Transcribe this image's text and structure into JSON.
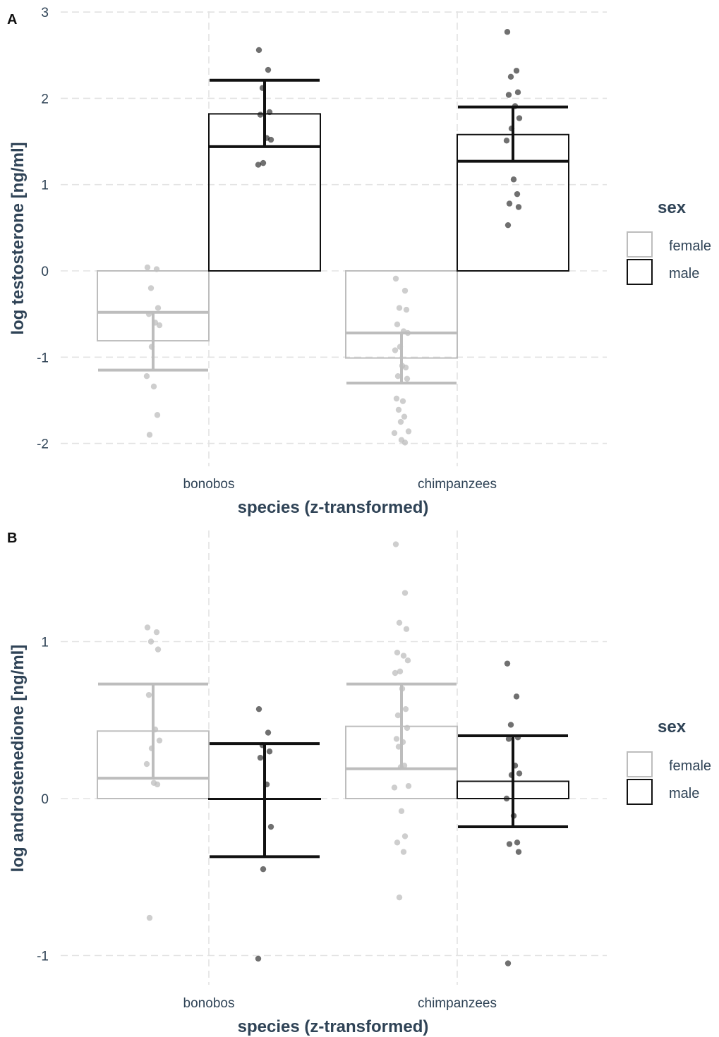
{
  "chart_data": [
    {
      "type": "bar",
      "panel": "A",
      "xlabel": "species (z-transformed)",
      "ylabel": "log testosterone [ng/ml]",
      "categories": [
        "bonobos",
        "chimpanzees"
      ],
      "yticks": [
        -2,
        -1,
        0,
        1,
        2,
        3
      ],
      "ylim": [
        -2.1,
        3.0
      ],
      "grid": true,
      "legend": {
        "title": "sex",
        "position": "right",
        "entries": [
          "female",
          "male"
        ]
      },
      "series": [
        {
          "name": "female",
          "color": "#bdbdbd",
          "values": [
            -0.81,
            -1.01
          ],
          "error": [
            [
              -1.15,
              -0.48
            ],
            [
              -1.3,
              -0.72
            ]
          ],
          "points": [
            [
              0.04,
              0.02,
              -0.2,
              -0.43,
              -0.5,
              -0.6,
              -0.63,
              -0.88,
              -1.22,
              -1.34,
              -1.67,
              -1.9
            ],
            [
              -0.09,
              -0.23,
              -0.43,
              -0.45,
              -0.62,
              -0.7,
              -0.72,
              -0.88,
              -0.92,
              -1.1,
              -1.12,
              -1.22,
              -1.25,
              -1.48,
              -1.51,
              -1.61,
              -1.69,
              -1.75,
              -1.86,
              -1.88,
              -1.96,
              -1.99
            ]
          ]
        },
        {
          "name": "male",
          "color": "#111111",
          "values": [
            1.82,
            1.58
          ],
          "error": [
            [
              1.44,
              2.21
            ],
            [
              1.27,
              1.9
            ]
          ],
          "points": [
            [
              2.56,
              2.33,
              2.12,
              1.84,
              1.81,
              1.54,
              1.52,
              1.25,
              1.23
            ],
            [
              2.77,
              2.32,
              2.25,
              2.07,
              2.04,
              1.91,
              1.77,
              1.65,
              1.51,
              1.06,
              0.89,
              0.78,
              0.74,
              0.53
            ]
          ]
        }
      ]
    },
    {
      "type": "bar",
      "panel": "B",
      "xlabel": "species (z-transformed)",
      "ylabel": "log androstenedione [ng/ml]",
      "categories": [
        "bonobos",
        "chimpanzees"
      ],
      "yticks": [
        -1,
        0,
        1
      ],
      "ylim": [
        -1.1,
        1.7
      ],
      "grid": true,
      "legend": {
        "title": "sex",
        "position": "right",
        "entries": [
          "female",
          "male"
        ]
      },
      "series": [
        {
          "name": "female",
          "color": "#bdbdbd",
          "values": [
            0.43,
            0.46
          ],
          "error": [
            [
              0.13,
              0.73
            ],
            [
              0.19,
              0.73
            ]
          ],
          "points": [
            [
              1.09,
              1.06,
              1.0,
              0.95,
              0.66,
              0.44,
              0.37,
              0.32,
              0.22,
              0.1,
              0.09,
              -0.76
            ],
            [
              1.62,
              1.31,
              1.12,
              1.08,
              0.93,
              0.91,
              0.88,
              0.81,
              0.8,
              0.7,
              0.57,
              0.53,
              0.45,
              0.38,
              0.36,
              0.33,
              0.21,
              0.2,
              0.08,
              0.07,
              -0.08,
              -0.24,
              -0.28,
              -0.34,
              -0.63
            ]
          ]
        },
        {
          "name": "male",
          "color": "#111111",
          "values": [
            0.0,
            0.11
          ],
          "error": [
            [
              -0.37,
              0.35
            ],
            [
              -0.18,
              0.4
            ]
          ],
          "points": [
            [
              0.57,
              0.42,
              0.34,
              0.3,
              0.26,
              0.09,
              -0.18,
              -0.45,
              -1.02
            ],
            [
              0.86,
              0.65,
              0.47,
              0.39,
              0.38,
              0.21,
              0.16,
              0.15,
              0.0,
              -0.11,
              -0.28,
              -0.29,
              -0.34,
              -1.05
            ]
          ]
        }
      ]
    }
  ]
}
